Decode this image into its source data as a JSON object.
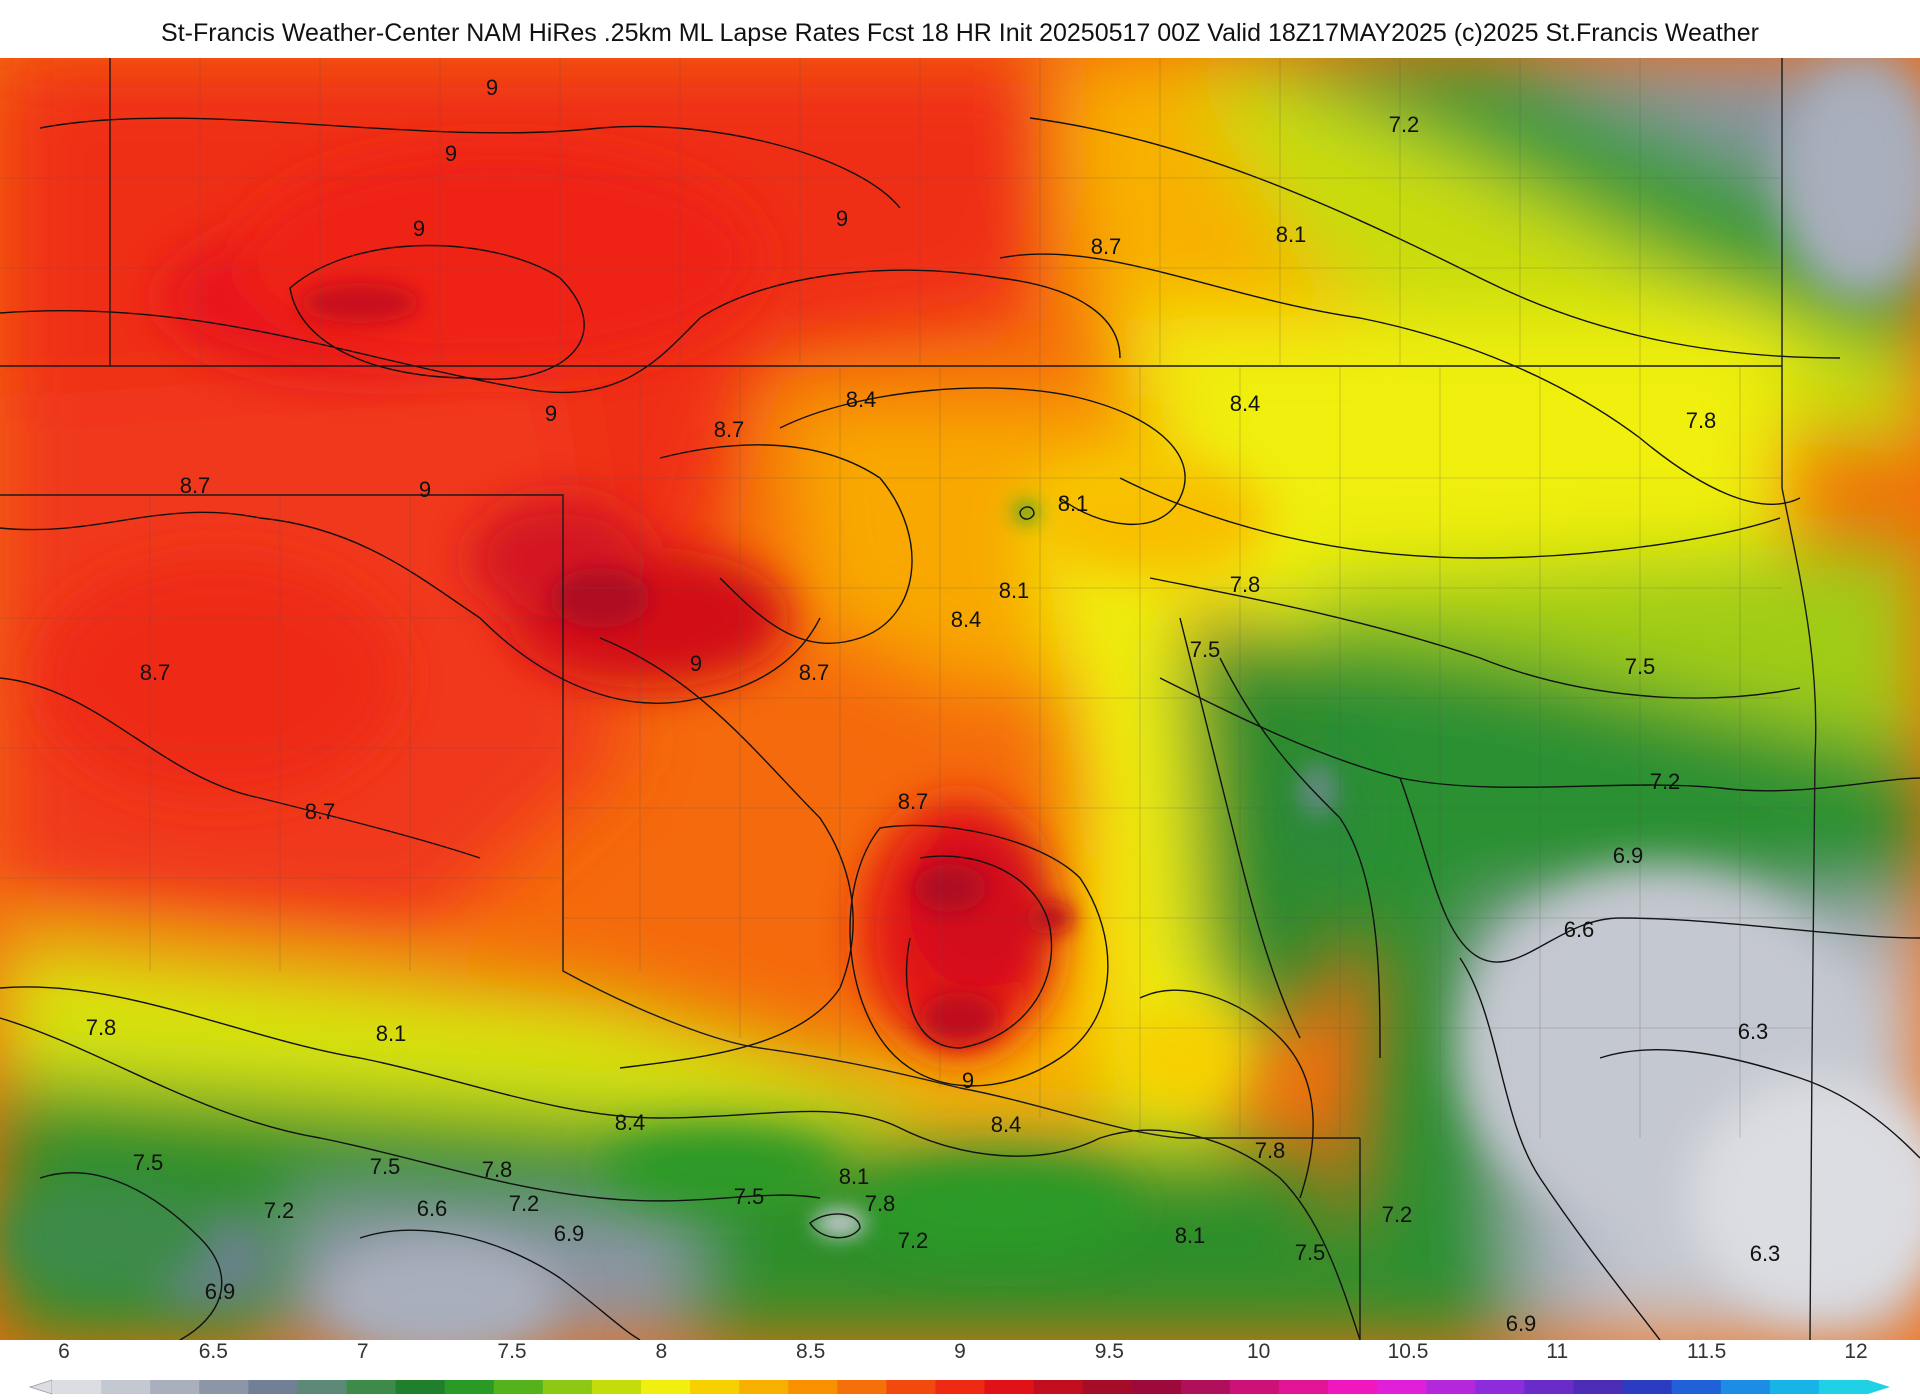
{
  "title": "St-Francis Weather-Center NAM HiRes .25km ML Lapse Rates  Fcst 18 HR Init 20250517 00Z  Valid 18Z17MAY2025    (c)2025 St.Francis Weather",
  "map": {
    "contour_labels": [
      {
        "text": "9"
      },
      {
        "text": "9"
      },
      {
        "text": "9"
      },
      {
        "text": "9"
      },
      {
        "text": "9"
      },
      {
        "text": "9"
      },
      {
        "text": "9"
      },
      {
        "text": "9"
      },
      {
        "text": "7.2"
      },
      {
        "text": "8.1"
      },
      {
        "text": "8.7"
      },
      {
        "text": "8.7"
      },
      {
        "text": "8.4"
      },
      {
        "text": "8.4"
      },
      {
        "text": "7.8"
      },
      {
        "text": "8.7"
      },
      {
        "text": "8.7"
      },
      {
        "text": "8.1"
      },
      {
        "text": "8.1"
      },
      {
        "text": "7.8"
      },
      {
        "text": "8.4"
      },
      {
        "text": "7.5"
      },
      {
        "text": "8.7"
      },
      {
        "text": "7.5"
      },
      {
        "text": "8.7"
      },
      {
        "text": "8.7"
      },
      {
        "text": "7.2"
      },
      {
        "text": "6.9"
      },
      {
        "text": "6.6"
      },
      {
        "text": "6.3"
      },
      {
        "text": "7.8"
      },
      {
        "text": "8.1"
      },
      {
        "text": "8.4"
      },
      {
        "text": "8.4"
      },
      {
        "text": "8.1"
      },
      {
        "text": "7.8"
      },
      {
        "text": "7.8"
      },
      {
        "text": "7.5"
      },
      {
        "text": "7.5"
      },
      {
        "text": "7.8"
      },
      {
        "text": "7.2"
      },
      {
        "text": "6.6"
      },
      {
        "text": "7.2"
      },
      {
        "text": "6.9"
      },
      {
        "text": "7.5"
      },
      {
        "text": "7.2"
      },
      {
        "text": "8.1"
      },
      {
        "text": "7.5"
      },
      {
        "text": "7.2"
      },
      {
        "text": "6.9"
      },
      {
        "text": "6.3"
      },
      {
        "text": "6.9"
      }
    ]
  },
  "colorbar": {
    "ticks": [
      "6",
      "6.5",
      "7",
      "7.5",
      "8",
      "8.5",
      "9",
      "9.5",
      "10",
      "10.5",
      "11",
      "11.5",
      "12"
    ],
    "palette": [
      "#dcdde2",
      "#c4c8d0",
      "#a9afbc",
      "#8d96a6",
      "#718095",
      "#5d8a78",
      "#3e8a4a",
      "#1f7f2c",
      "#2a9a26",
      "#56b21c",
      "#8cc814",
      "#c2dc0c",
      "#f0ef10",
      "#f7d000",
      "#f8b000",
      "#f89000",
      "#f56f0a",
      "#f24a0e",
      "#ef2a12",
      "#e01218",
      "#c00e1e",
      "#a50c28",
      "#9c0a3c",
      "#b0105a",
      "#cc1278",
      "#e21496",
      "#f018bc",
      "#e020d8",
      "#b428dc",
      "#8c2cdc",
      "#6a2cc8",
      "#4c2cb4",
      "#2c3cc0",
      "#2060d8",
      "#1c8ce4",
      "#18b4e8",
      "#20d0e4"
    ]
  }
}
